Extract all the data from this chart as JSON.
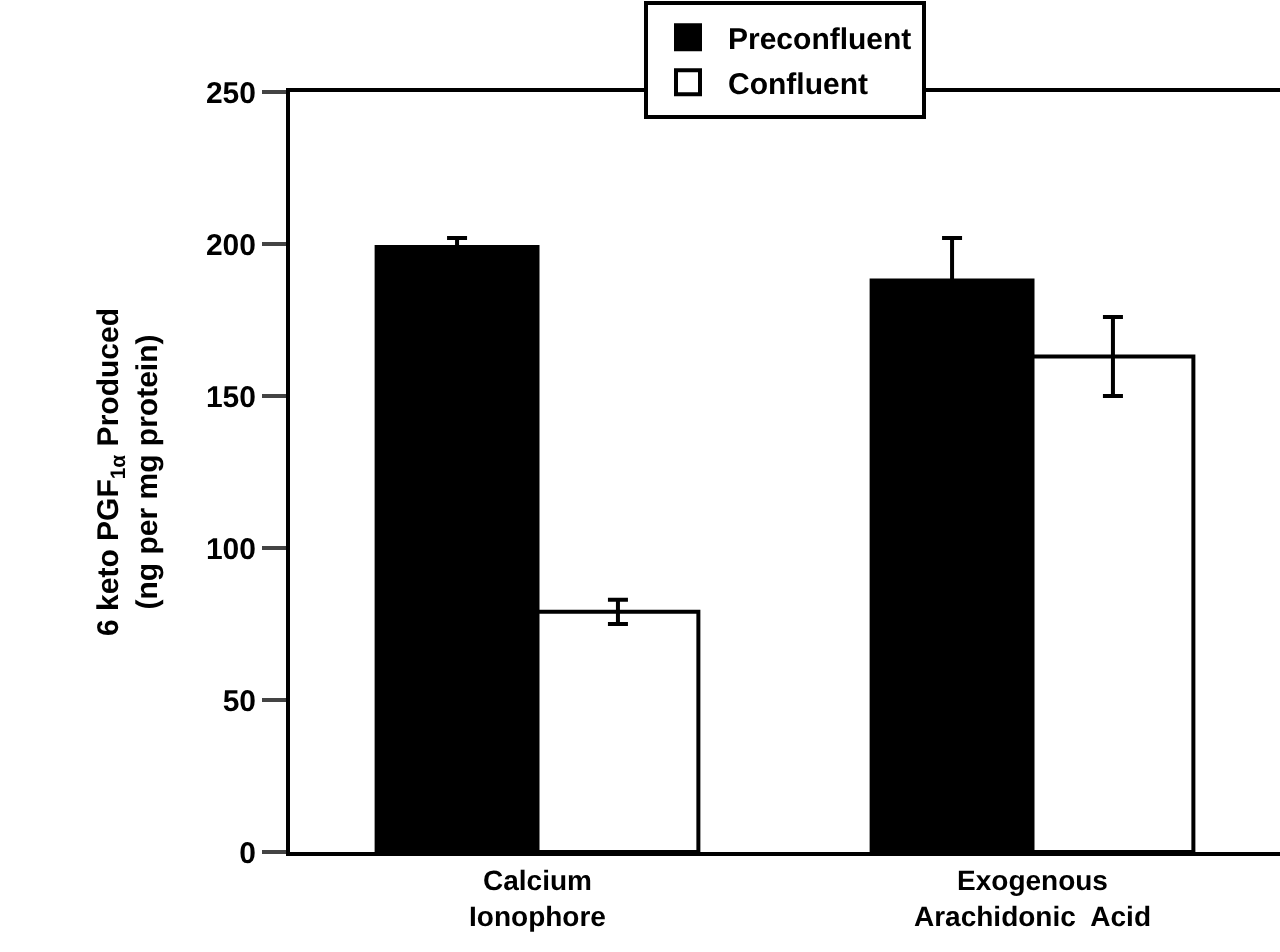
{
  "chart_data": {
    "type": "bar",
    "ylabel": "6 keto PGF$_{1α}$ Produced\n(ng per mg protein)",
    "categories": [
      "Calcium\nIonophore",
      "Exogenous\nArachidonic  Acid"
    ],
    "series": [
      {
        "name": "Preconfluent",
        "color": "#000000",
        "values": [
          199,
          188
        ],
        "errors": [
          3,
          14
        ]
      },
      {
        "name": "Confluent",
        "color": "#ffffff",
        "values": [
          79,
          163
        ],
        "errors": [
          4,
          13
        ]
      }
    ],
    "ylim": [
      0,
      250
    ],
    "yticks": [
      0,
      50,
      100,
      150,
      200,
      250
    ],
    "grid": false,
    "legend": "top"
  }
}
